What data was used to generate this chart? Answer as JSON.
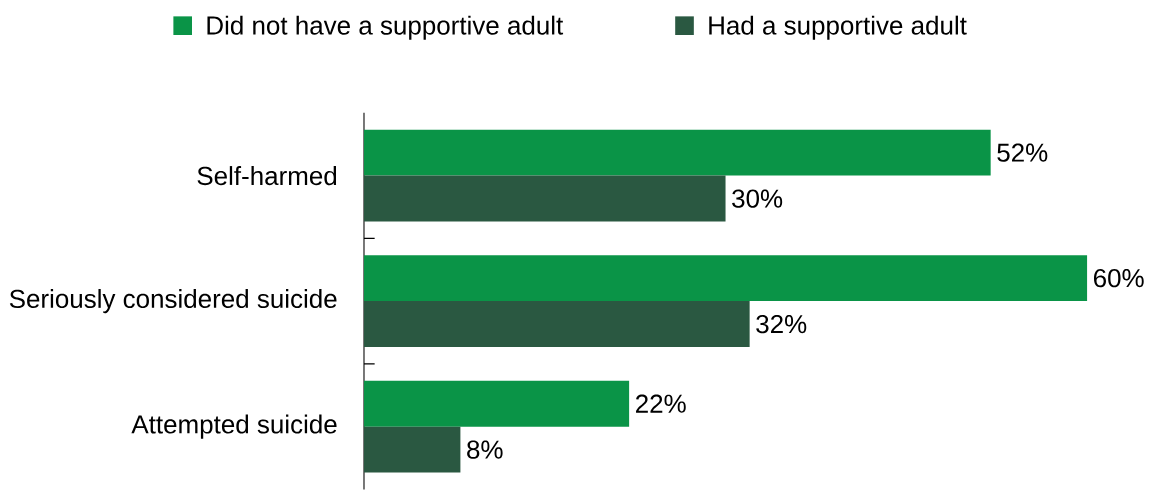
{
  "chart_data": {
    "type": "bar",
    "orientation": "horizontal",
    "categories": [
      "Self-harmed",
      "Seriously considered suicide",
      "Attempted suicide"
    ],
    "series": [
      {
        "name": "Did not have a supportive adult",
        "color": "#0a9447",
        "values": [
          52,
          60,
          22
        ],
        "value_labels": [
          "52%",
          "60%",
          "22%"
        ]
      },
      {
        "name": "Had a supportive adult",
        "color": "#2a5841",
        "values": [
          30,
          32,
          8
        ],
        "value_labels": [
          "30%",
          "32%",
          "8%"
        ]
      }
    ],
    "xlim": [
      0,
      60
    ],
    "legend": "top"
  }
}
